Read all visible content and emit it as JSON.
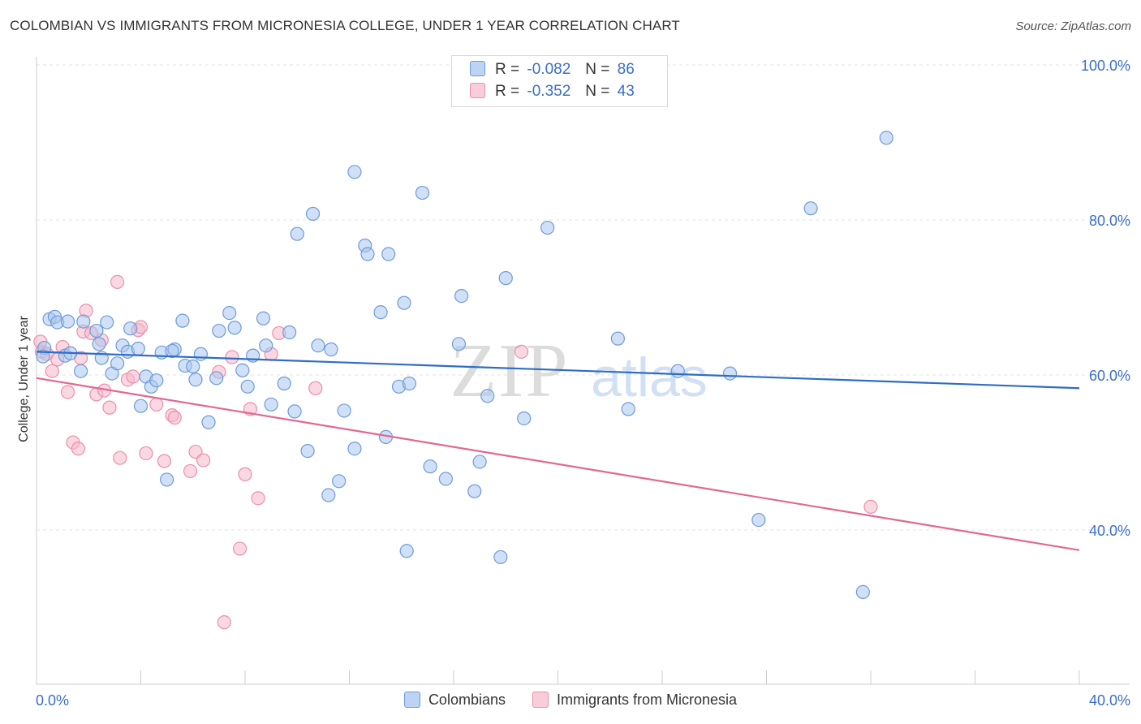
{
  "title": "COLOMBIAN VS IMMIGRANTS FROM MICRONESIA COLLEGE, UNDER 1 YEAR CORRELATION CHART",
  "source": "Source: ZipAtlas.com",
  "watermark": {
    "zip": "ZIP",
    "atlas": "atlas"
  },
  "colors": {
    "colombians_fill": "#a9c7ef",
    "colombians_stroke": "#6f9bd8",
    "colombians_line": "#2f6cc6",
    "micronesia_fill": "#f6b8cb",
    "micronesia_stroke": "#ea8fac",
    "micronesia_line": "#e06892",
    "axis_label": "#3a6fc8",
    "grid": "#e3e3e3"
  },
  "legend": {
    "rows": [
      {
        "r_label": "R =",
        "r_value": "-0.082",
        "n_label": "N =",
        "n_value": "86"
      },
      {
        "r_label": "R =",
        "r_value": "-0.352",
        "n_label": "N =",
        "n_value": "43"
      }
    ]
  },
  "bottom_legend": {
    "colombians": "Colombians",
    "micronesia": "Immigrants from Micronesia"
  },
  "chart_data": {
    "type": "scatter",
    "title": "COLOMBIAN VS IMMIGRANTS FROM MICRONESIA COLLEGE, UNDER 1 YEAR CORRELATION CHART",
    "xlabel": "",
    "ylabel": "College, Under 1 year",
    "xlim": [
      0,
      40
    ],
    "ylim": [
      20,
      103
    ],
    "x_tick_labels": [
      "0.0%",
      "40.0%"
    ],
    "y_ticks": [
      40,
      60,
      80,
      100
    ],
    "y_tick_labels": [
      "40.0%",
      "60.0%",
      "80.0%",
      "100.0%"
    ],
    "grid": true,
    "legend_position": "top-center",
    "series": [
      {
        "name": "Colombians",
        "r": -0.082,
        "n": 86,
        "trend": [
          [
            0,
            63.0
          ],
          [
            40,
            58.3
          ]
        ],
        "points": [
          [
            0.3,
            63.5
          ],
          [
            0.5,
            67.2
          ],
          [
            0.7,
            67.5
          ],
          [
            0.8,
            66.8
          ],
          [
            1.1,
            62.5
          ],
          [
            1.2,
            66.9
          ],
          [
            1.3,
            62.8
          ],
          [
            1.7,
            60.5
          ],
          [
            1.8,
            66.9
          ],
          [
            2.3,
            65.7
          ],
          [
            2.4,
            64.0
          ],
          [
            2.5,
            62.2
          ],
          [
            2.7,
            66.8
          ],
          [
            2.9,
            60.2
          ],
          [
            3.1,
            61.5
          ],
          [
            3.3,
            63.8
          ],
          [
            3.5,
            63.0
          ],
          [
            3.6,
            66.0
          ],
          [
            3.9,
            63.4
          ],
          [
            4.0,
            56.0
          ],
          [
            4.2,
            59.8
          ],
          [
            4.4,
            58.5
          ],
          [
            4.6,
            59.3
          ],
          [
            4.8,
            62.9
          ],
          [
            5.0,
            46.5
          ],
          [
            5.3,
            63.3
          ],
          [
            5.6,
            67.0
          ],
          [
            5.7,
            61.2
          ],
          [
            6.0,
            61.1
          ],
          [
            6.1,
            59.4
          ],
          [
            6.3,
            62.7
          ],
          [
            6.6,
            53.9
          ],
          [
            6.9,
            59.6
          ],
          [
            7.0,
            65.7
          ],
          [
            7.4,
            68.0
          ],
          [
            7.6,
            66.1
          ],
          [
            7.9,
            60.6
          ],
          [
            8.1,
            58.5
          ],
          [
            8.3,
            62.5
          ],
          [
            8.7,
            67.3
          ],
          [
            8.8,
            63.8
          ],
          [
            9.0,
            56.2
          ],
          [
            9.5,
            58.9
          ],
          [
            9.7,
            65.5
          ],
          [
            9.9,
            55.3
          ],
          [
            10.0,
            78.2
          ],
          [
            10.4,
            50.2
          ],
          [
            10.6,
            80.8
          ],
          [
            10.8,
            63.8
          ],
          [
            11.2,
            44.5
          ],
          [
            11.3,
            63.3
          ],
          [
            11.6,
            46.3
          ],
          [
            11.8,
            55.4
          ],
          [
            12.2,
            50.5
          ],
          [
            12.2,
            86.2
          ],
          [
            12.6,
            76.7
          ],
          [
            12.7,
            75.6
          ],
          [
            13.2,
            68.1
          ],
          [
            13.4,
            52.0
          ],
          [
            13.5,
            75.6
          ],
          [
            13.9,
            58.5
          ],
          [
            14.1,
            69.3
          ],
          [
            14.2,
            37.3
          ],
          [
            14.3,
            58.9
          ],
          [
            14.8,
            83.5
          ],
          [
            15.1,
            48.2
          ],
          [
            15.7,
            46.6
          ],
          [
            16.2,
            64.0
          ],
          [
            16.3,
            70.2
          ],
          [
            16.8,
            45.0
          ],
          [
            17.0,
            48.8
          ],
          [
            17.3,
            57.3
          ],
          [
            17.8,
            36.5
          ],
          [
            18.0,
            72.5
          ],
          [
            18.7,
            54.4
          ],
          [
            19.6,
            79.0
          ],
          [
            22.3,
            64.7
          ],
          [
            22.7,
            55.6
          ],
          [
            24.6,
            60.5
          ],
          [
            26.6,
            60.2
          ],
          [
            27.7,
            41.3
          ],
          [
            29.7,
            81.5
          ],
          [
            31.7,
            32.0
          ],
          [
            32.6,
            90.6
          ],
          [
            0.25,
            62.4
          ],
          [
            5.2,
            63.1
          ]
        ]
      },
      {
        "name": "Immigrants from Micronesia",
        "r": -0.352,
        "n": 43,
        "trend": [
          [
            0,
            59.6
          ],
          [
            40,
            37.4
          ]
        ],
        "points": [
          [
            0.2,
            63.0
          ],
          [
            0.4,
            62.7
          ],
          [
            0.6,
            60.5
          ],
          [
            0.8,
            62.0
          ],
          [
            1.0,
            63.6
          ],
          [
            1.2,
            57.8
          ],
          [
            1.4,
            51.3
          ],
          [
            1.6,
            50.5
          ],
          [
            1.7,
            62.2
          ],
          [
            1.8,
            65.6
          ],
          [
            1.9,
            68.3
          ],
          [
            2.1,
            65.4
          ],
          [
            2.3,
            57.5
          ],
          [
            2.5,
            64.5
          ],
          [
            2.6,
            58.0
          ],
          [
            2.8,
            55.8
          ],
          [
            3.1,
            72.0
          ],
          [
            3.2,
            49.3
          ],
          [
            3.5,
            59.4
          ],
          [
            3.7,
            59.8
          ],
          [
            3.9,
            65.8
          ],
          [
            4.0,
            66.2
          ],
          [
            4.2,
            49.9
          ],
          [
            4.6,
            56.2
          ],
          [
            4.9,
            48.9
          ],
          [
            5.2,
            54.8
          ],
          [
            5.3,
            54.5
          ],
          [
            5.9,
            47.6
          ],
          [
            6.1,
            50.1
          ],
          [
            6.4,
            49.0
          ],
          [
            7.0,
            60.4
          ],
          [
            7.2,
            28.1
          ],
          [
            7.5,
            62.3
          ],
          [
            7.8,
            37.6
          ],
          [
            8.0,
            47.2
          ],
          [
            8.2,
            55.6
          ],
          [
            8.5,
            44.1
          ],
          [
            9.0,
            62.7
          ],
          [
            9.3,
            65.4
          ],
          [
            10.7,
            58.3
          ],
          [
            18.6,
            63.0
          ],
          [
            32.0,
            43.0
          ],
          [
            0.15,
            64.3
          ]
        ]
      }
    ]
  }
}
